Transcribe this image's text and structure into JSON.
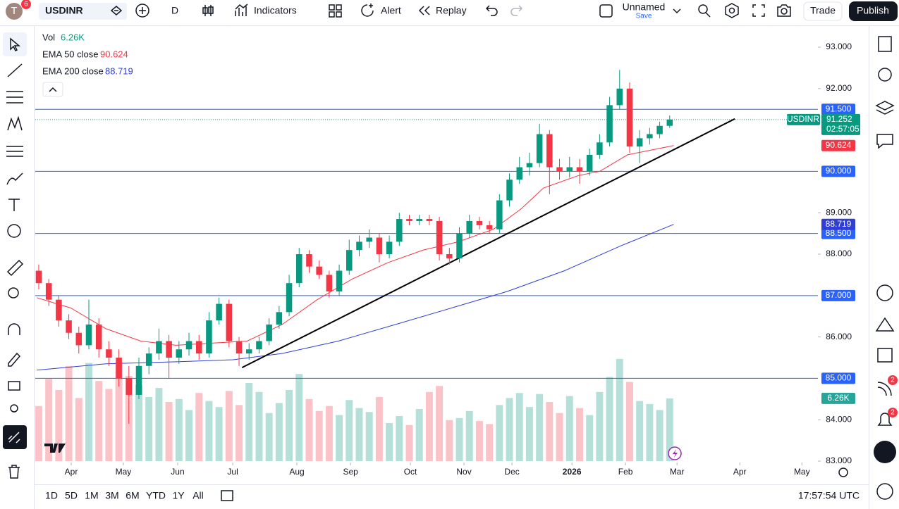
{
  "toolbar": {
    "avatar": "T",
    "notifications": 6,
    "symbol": "USDINR",
    "interval": "D",
    "indicators": "Indicators",
    "alert": "Alert",
    "replay": "Replay",
    "layout_name": "Unnamed",
    "save": "Save",
    "trade": "Trade",
    "publish": "Publish"
  },
  "side_badges": [
    2,
    2
  ],
  "bottom_bar": {
    "ranges": [
      "1D",
      "5D",
      "1M",
      "3M",
      "6M",
      "YTD",
      "1Y",
      "All"
    ],
    "clock": "17:57:54 UTC"
  },
  "chart_data": {
    "type": "candlestick",
    "symbol": "USDINR",
    "countdown": "02:57:05",
    "up_color": "#089981",
    "down_color": "#f23645",
    "candles": {
      "open": [
        87.6,
        87.3,
        86.9,
        86.4,
        86.1,
        85.8,
        86.3,
        85.7,
        85.5,
        85.0,
        84.6,
        85.3,
        85.6,
        85.9,
        85.5,
        85.7,
        85.9,
        85.6,
        86.4,
        86.8,
        85.9,
        85.6,
        85.7,
        85.9,
        86.3,
        86.6,
        87.3,
        88.0,
        87.7,
        87.5,
        87.1,
        87.6,
        88.1,
        88.3,
        88.4,
        88.0,
        88.3,
        88.85,
        88.8,
        88.85,
        88.8,
        88.0,
        87.9,
        88.5,
        88.8,
        88.7,
        88.6,
        89.3,
        89.8,
        90.1,
        90.2,
        90.9,
        90.1,
        90.0,
        90.1,
        90.0,
        90.4,
        90.7,
        91.6,
        92.0,
        90.6,
        90.8,
        90.9,
        91.1
      ],
      "high": [
        87.75,
        87.4,
        87.0,
        86.55,
        86.25,
        86.9,
        86.45,
        85.9,
        85.7,
        85.3,
        85.5,
        85.75,
        86.2,
        86.05,
        85.9,
        86.1,
        86.05,
        86.6,
        86.95,
        86.9,
        86.0,
        85.85,
        86.0,
        86.45,
        86.75,
        87.5,
        88.15,
        88.1,
        87.85,
        87.6,
        87.75,
        88.35,
        88.45,
        88.6,
        88.5,
        88.45,
        89.0,
        88.95,
        88.95,
        88.95,
        88.9,
        88.15,
        88.65,
        88.95,
        88.9,
        88.8,
        89.45,
        89.95,
        90.35,
        90.45,
        91.15,
        91.0,
        90.3,
        90.35,
        90.3,
        90.55,
        90.9,
        91.8,
        92.45,
        92.15,
        91.0,
        91.05,
        91.2,
        91.35
      ],
      "low": [
        87.15,
        86.75,
        86.25,
        85.95,
        85.6,
        85.7,
        85.5,
        85.3,
        84.8,
        83.9,
        84.5,
        85.1,
        85.45,
        85.0,
        85.35,
        85.55,
        85.45,
        85.5,
        86.3,
        85.75,
        85.3,
        85.45,
        85.6,
        85.8,
        86.2,
        86.5,
        87.2,
        87.55,
        87.4,
        86.95,
        87.0,
        87.5,
        87.95,
        88.15,
        87.8,
        87.9,
        88.2,
        88.7,
        88.7,
        88.7,
        87.85,
        87.75,
        87.8,
        88.4,
        88.6,
        88.5,
        88.5,
        89.15,
        89.7,
        89.9,
        90.1,
        89.45,
        89.8,
        89.85,
        89.7,
        89.9,
        90.3,
        90.6,
        91.5,
        90.45,
        90.2,
        90.65,
        90.8,
        91.05
      ],
      "close": [
        87.3,
        86.9,
        86.4,
        86.1,
        85.8,
        86.3,
        85.7,
        85.5,
        85.0,
        84.6,
        85.3,
        85.6,
        85.9,
        85.5,
        85.7,
        85.9,
        85.6,
        86.4,
        86.8,
        85.9,
        85.6,
        85.7,
        85.9,
        86.3,
        86.6,
        87.3,
        88.0,
        87.7,
        87.5,
        87.1,
        87.6,
        88.1,
        88.3,
        88.4,
        88.0,
        88.3,
        88.85,
        88.8,
        88.85,
        88.8,
        88.0,
        87.9,
        88.5,
        88.8,
        88.7,
        88.6,
        89.3,
        89.8,
        90.1,
        90.2,
        90.9,
        90.1,
        90.0,
        90.1,
        90.0,
        90.4,
        90.7,
        91.6,
        92.0,
        90.6,
        90.8,
        90.9,
        91.1,
        91.252
      ]
    },
    "volume": {
      "name": "Vol",
      "last_label": "6.26K",
      "ylim": [
        0,
        13
      ],
      "values": [
        5.5,
        8.2,
        7.1,
        9.5,
        6.3,
        9.8,
        8.0,
        7.2,
        9.9,
        8.5,
        7.6,
        6.4,
        7.3,
        5.9,
        6.2,
        5.1,
        6.8,
        6.0,
        5.4,
        7.0,
        5.6,
        7.8,
        6.9,
        4.8,
        5.8,
        7.1,
        8.7,
        6.2,
        5.0,
        5.5,
        4.6,
        6.1,
        5.3,
        4.9,
        6.4,
        3.8,
        4.5,
        3.6,
        5.2,
        6.9,
        7.5,
        4.1,
        4.3,
        5.0,
        4.0,
        3.7,
        5.6,
        6.3,
        6.8,
        5.4,
        6.7,
        5.9,
        4.8,
        6.5,
        5.3,
        4.6,
        6.9,
        8.4,
        10.2,
        7.9,
        6.0,
        5.7,
        5.1,
        6.26
      ]
    },
    "ema50": {
      "name": "EMA 50 close",
      "color": "#f23645",
      "x": [
        -0.2,
        3.2,
        6.7,
        10.2,
        13.7,
        17.3,
        20.8,
        24.3,
        27.8,
        31.3,
        34.9,
        38.4,
        41.9,
        45.4,
        48.2,
        50.4,
        53.9,
        56,
        58.8,
        63.4
      ],
      "values": [
        86.95,
        86.7,
        86.2,
        85.9,
        85.8,
        85.85,
        85.9,
        86.3,
        86.9,
        87.4,
        87.8,
        88.1,
        88.3,
        88.6,
        89.1,
        89.6,
        89.9,
        90.0,
        90.4,
        90.624
      ]
    },
    "ema200": {
      "name": "EMA 200 close",
      "color": "#2f3ed6",
      "x": [
        -0.2,
        6.7,
        13.7,
        19.4,
        24.3,
        29.9,
        35.6,
        41.2,
        46.8,
        52.5,
        58.1,
        63.4
      ],
      "values": [
        85.2,
        85.35,
        85.4,
        85.45,
        85.6,
        85.9,
        86.3,
        86.7,
        87.1,
        87.6,
        88.2,
        88.719
      ]
    },
    "levels": [
      {
        "value": 91.5,
        "label": "91.500"
      },
      {
        "value": 90,
        "label": "90.000"
      },
      {
        "value": 88.5,
        "label": "88.500"
      },
      {
        "value": 87,
        "label": "87.000"
      },
      {
        "value": 85,
        "label": "85.000"
      }
    ],
    "level_color": "#2962ff",
    "trendline": {
      "x": [
        20.3,
        69.5
      ],
      "values": [
        85.26,
        91.27
      ]
    },
    "ylim": [
      83,
      93.46
    ],
    "yticks": [
      {
        "value": 93,
        "label": "93.000"
      },
      {
        "value": 92,
        "label": "92.000"
      },
      {
        "value": 89,
        "label": "89.000"
      },
      {
        "value": 88,
        "label": "88.000"
      },
      {
        "value": 86,
        "label": "86.000"
      },
      {
        "value": 84,
        "label": "84.000"
      },
      {
        "value": 83,
        "label": "83.000"
      }
    ],
    "xlim": [
      -0.35,
      77.8
    ],
    "xticks": [
      {
        "value": 3.24,
        "label": "Apr"
      },
      {
        "value": 8.45,
        "label": "May"
      },
      {
        "value": 13.87,
        "label": "Jun"
      },
      {
        "value": 19.37,
        "label": "Jul"
      },
      {
        "value": 25.77,
        "label": "Aug"
      },
      {
        "value": 31.13,
        "label": "Sep"
      },
      {
        "value": 37.11,
        "label": "Oct"
      },
      {
        "value": 42.46,
        "label": "Nov"
      },
      {
        "value": 47.25,
        "label": "Dec"
      },
      {
        "value": 53.24,
        "label": "2026"
      },
      {
        "value": 58.59,
        "label": "Feb"
      },
      {
        "value": 63.73,
        "label": "Mar"
      },
      {
        "value": 70.0,
        "label": "Apr"
      },
      {
        "value": 76.2,
        "label": "May"
      }
    ]
  }
}
